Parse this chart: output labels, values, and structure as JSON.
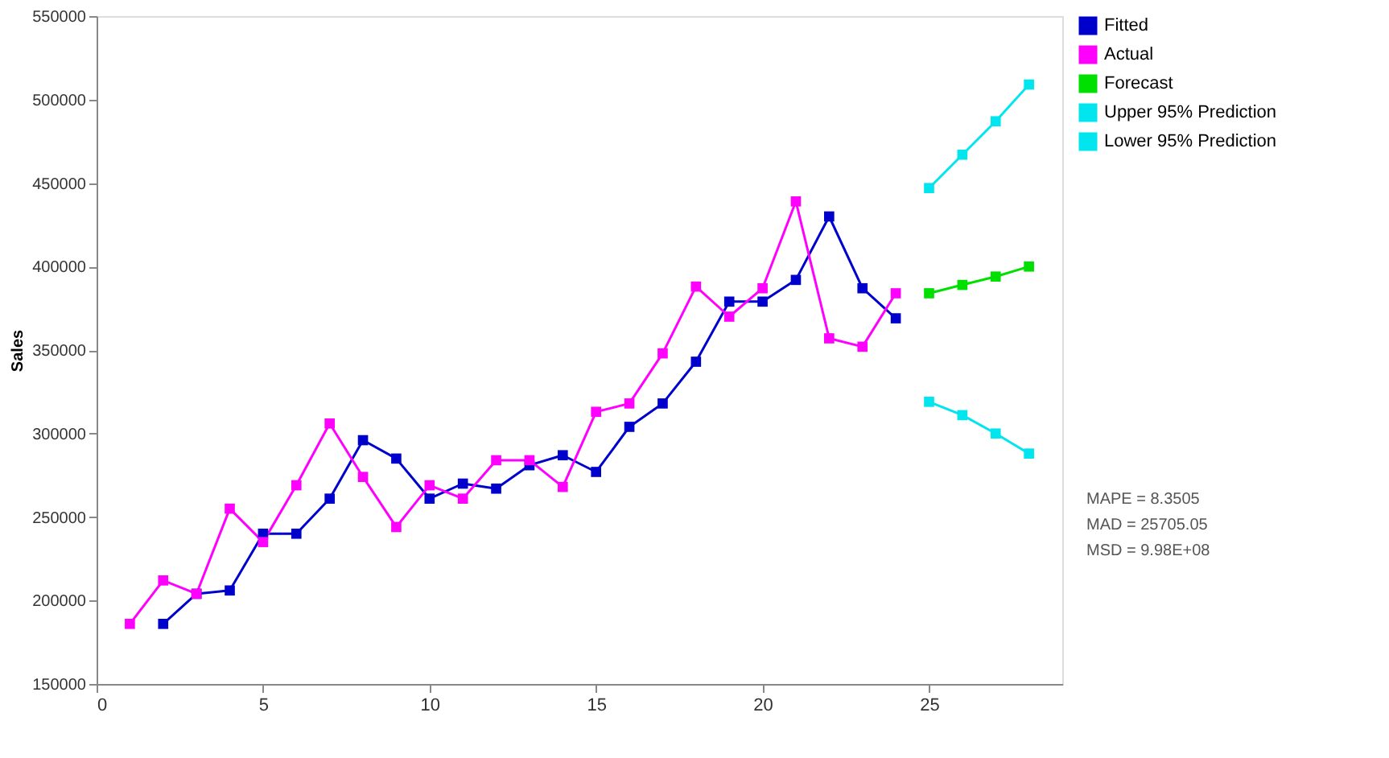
{
  "chart_data": {
    "type": "line",
    "ylabel": "Sales",
    "xlim": [
      0,
      29
    ],
    "xticks": [
      0,
      5,
      10,
      15,
      20,
      25
    ],
    "ylim": [
      150000,
      550000
    ],
    "yticks": [
      150000,
      200000,
      250000,
      300000,
      350000,
      400000,
      450000,
      500000,
      550000
    ],
    "grid": false,
    "legend": "right",
    "marker": "square",
    "line_style": "solid",
    "series": [
      {
        "name": "Fitted",
        "color": "#0000cc",
        "x": [
          2,
          3,
          4,
          5,
          6,
          7,
          8,
          9,
          10,
          11,
          12,
          13,
          14,
          15,
          16,
          17,
          18,
          19,
          20,
          21,
          22,
          23,
          24
        ],
        "values": [
          186000,
          204000,
          206000,
          240000,
          240000,
          261000,
          296000,
          285000,
          261000,
          270000,
          267000,
          281000,
          287000,
          277000,
          304000,
          318000,
          343000,
          379000,
          379000,
          392000,
          430000,
          387000,
          369000
        ]
      },
      {
        "name": "Actual",
        "color": "#ff00ff",
        "x": [
          1,
          2,
          3,
          4,
          5,
          6,
          7,
          8,
          9,
          10,
          11,
          12,
          13,
          14,
          15,
          16,
          17,
          18,
          19,
          20,
          21,
          22,
          23,
          24
        ],
        "values": [
          186000,
          212000,
          204000,
          255000,
          235000,
          269000,
          306000,
          274000,
          244000,
          269000,
          261000,
          284000,
          284000,
          268000,
          313000,
          318000,
          348000,
          388000,
          370000,
          387000,
          439000,
          357000,
          352000,
          384000
        ]
      },
      {
        "name": "Forecast",
        "color": "#00e000",
        "x": [
          25,
          26,
          27,
          28
        ],
        "values": [
          384000,
          389000,
          394000,
          400000
        ]
      },
      {
        "name": "Upper 95% Prediction",
        "color": "#00e5ee",
        "x": [
          25,
          26,
          27,
          28
        ],
        "values": [
          447000,
          467000,
          487000,
          509000
        ]
      },
      {
        "name": "Lower 95% Prediction",
        "color": "#00e5ee",
        "x": [
          25,
          26,
          27,
          28
        ],
        "values": [
          319000,
          311000,
          300000,
          288000
        ]
      }
    ],
    "annotations": [
      "MAPE = 8.3505",
      "MAD = 25705.05",
      "MSD = 9.98E+08"
    ]
  }
}
